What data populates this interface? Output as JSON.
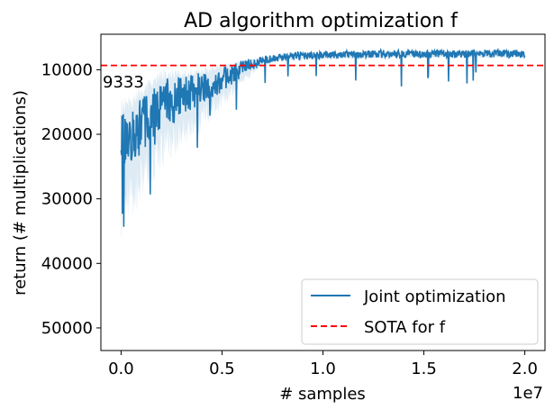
{
  "chart_data": {
    "type": "line",
    "title": "AD algorithm optimization f",
    "xlabel": "# samples",
    "ylabel": "return (# multiplications)",
    "x_offset_label": "1e7",
    "xlim": [
      -0.1,
      2.1
    ],
    "ylim": [
      53500,
      4500
    ],
    "y_inverted": true,
    "x_ticks": [
      0.0,
      0.5,
      1.0,
      1.5,
      2.0
    ],
    "x_tick_labels": [
      "0.0",
      "0.5",
      "1.0",
      "1.5",
      "2.0"
    ],
    "y_ticks": [
      10000,
      20000,
      30000,
      40000,
      50000
    ],
    "y_tick_labels": [
      "10000",
      "20000",
      "30000",
      "40000",
      "50000"
    ],
    "legend_position": "bottom-right",
    "grid": false,
    "series": [
      {
        "name": "Joint optimization",
        "color": "#1f77b4",
        "style": "solid",
        "shaded_band": true,
        "x": [
          0.0,
          0.05,
          0.1,
          0.2,
          0.3,
          0.4,
          0.5,
          0.6,
          0.7,
          0.8,
          0.9,
          1.0,
          1.2,
          1.4,
          1.5,
          1.6,
          1.8,
          2.0
        ],
        "values": [
          21500,
          20500,
          18500,
          15000,
          14000,
          13000,
          11500,
          9800,
          8500,
          8000,
          7800,
          7700,
          7600,
          7500,
          7500,
          7500,
          7500,
          7500
        ]
      },
      {
        "name": "SOTA for f",
        "color": "#ff0000",
        "style": "dashed",
        "constant_y": 9333
      }
    ],
    "annotations": [
      {
        "text": "9333",
        "x": -0.1,
        "y": 9333,
        "color": "#ff0000"
      }
    ]
  }
}
